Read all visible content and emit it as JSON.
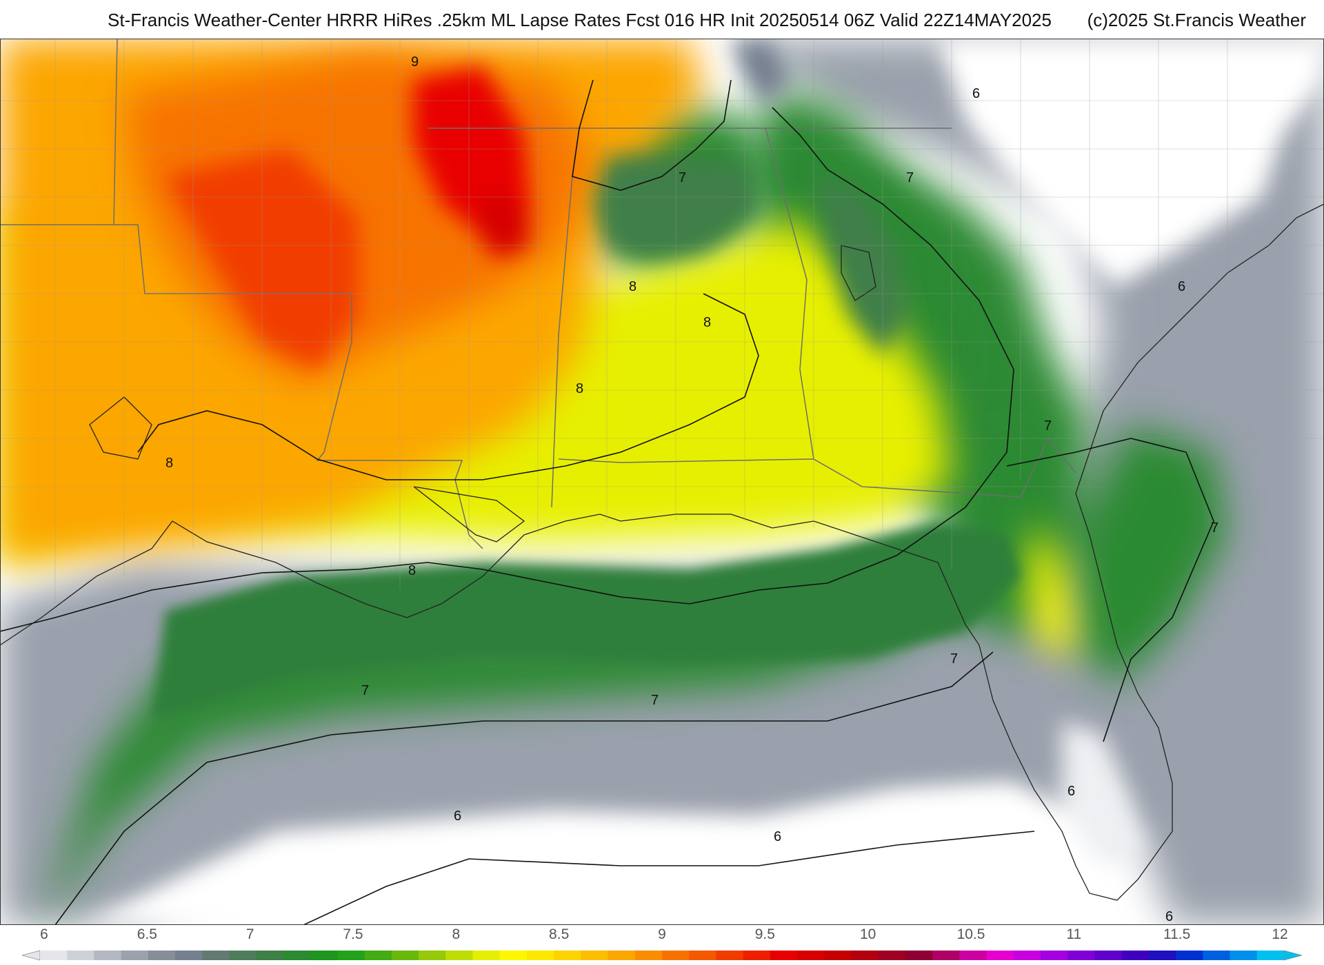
{
  "header": {
    "title": "St-Francis Weather-Center HRRR HiRes .25km ML Lapse Rates  Fcst 016 HR Init 20250514 06Z  Valid 22Z14MAY2025",
    "copyright": "(c)2025 St.Francis Weather"
  },
  "map": {
    "field": "ML Lapse Rates",
    "contour_labels": [
      "9",
      "8",
      "8",
      "8",
      "8",
      "8",
      "7",
      "7",
      "7",
      "7",
      "7",
      "7",
      "7",
      "6",
      "6",
      "6",
      "6",
      "6",
      "6"
    ]
  },
  "colorbar": {
    "tick_labels": [
      "6",
      "6.5",
      "7",
      "7.5",
      "8",
      "8.5",
      "9",
      "9.5",
      "10",
      "10.5",
      "11",
      "11.5",
      "12"
    ],
    "colors": [
      "#e6e6ea",
      "#cfd1d8",
      "#b4b8c2",
      "#9ba1ad",
      "#868e9a",
      "#748090",
      "#637a72",
      "#4f7d5c",
      "#3f7f48",
      "#2b8a32",
      "#1d951f",
      "#22a21a",
      "#43ab14",
      "#6bb80d",
      "#95c90a",
      "#bedd06",
      "#e4ef02",
      "#fcf800",
      "#fde800",
      "#fdd300",
      "#fdbd00",
      "#fca600",
      "#fa8d00",
      "#f77300",
      "#f45900",
      "#f13c00",
      "#ee1f00",
      "#e80000",
      "#d60000",
      "#c40000",
      "#b20010",
      "#a00022",
      "#8e0033",
      "#ae0066",
      "#cc00a0",
      "#e500d0",
      "#c800e0",
      "#a400e0",
      "#8000d8",
      "#6000cc",
      "#4000c0",
      "#2010c0",
      "#0030d0",
      "#0060e0",
      "#0090ea",
      "#00c0f0"
    ]
  }
}
